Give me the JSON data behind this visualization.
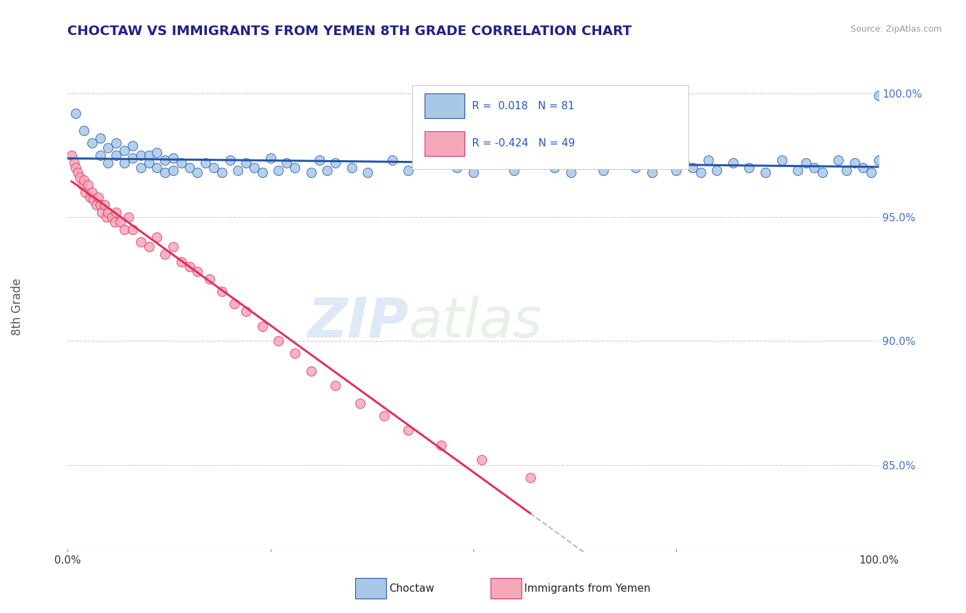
{
  "title": "CHOCTAW VS IMMIGRANTS FROM YEMEN 8TH GRADE CORRELATION CHART",
  "source": "Source: ZipAtlas.com",
  "ylabel": "8th Grade",
  "legend_label1": "Choctaw",
  "legend_label2": "Immigrants from Yemen",
  "R1": 0.018,
  "N1": 81,
  "R2": -0.424,
  "N2": 49,
  "xlim": [
    0.0,
    1.0
  ],
  "ylim": [
    0.815,
    1.008
  ],
  "yticks": [
    0.85,
    0.9,
    0.95,
    1.0
  ],
  "ytick_labels": [
    "85.0%",
    "90.0%",
    "95.0%",
    "100.0%"
  ],
  "color_blue": "#a8c8e8",
  "color_pink": "#f4a8b8",
  "line_color_blue": "#2255aa",
  "line_color_pink": "#e03060",
  "watermark_zip": "ZIP",
  "watermark_atlas": "atlas",
  "blue_scatter_x": [
    0.01,
    0.02,
    0.03,
    0.04,
    0.04,
    0.05,
    0.05,
    0.06,
    0.06,
    0.07,
    0.07,
    0.08,
    0.08,
    0.09,
    0.09,
    0.1,
    0.1,
    0.11,
    0.11,
    0.12,
    0.12,
    0.13,
    0.13,
    0.14,
    0.15,
    0.16,
    0.17,
    0.18,
    0.19,
    0.2,
    0.21,
    0.22,
    0.23,
    0.24,
    0.25,
    0.26,
    0.27,
    0.28,
    0.3,
    0.31,
    0.32,
    0.33,
    0.35,
    0.37,
    0.4,
    0.42,
    0.45,
    0.48,
    0.5,
    0.53,
    0.55,
    0.58,
    0.6,
    0.62,
    0.64,
    0.66,
    0.68,
    0.7,
    0.72,
    0.74,
    0.75,
    0.76,
    0.77,
    0.78,
    0.79,
    0.8,
    0.82,
    0.84,
    0.86,
    0.88,
    0.9,
    0.91,
    0.92,
    0.93,
    0.95,
    0.96,
    0.97,
    0.98,
    0.99,
    1.0,
    1.0
  ],
  "blue_scatter_y": [
    0.992,
    0.985,
    0.98,
    0.975,
    0.982,
    0.978,
    0.972,
    0.975,
    0.98,
    0.977,
    0.972,
    0.974,
    0.979,
    0.975,
    0.97,
    0.975,
    0.972,
    0.97,
    0.976,
    0.973,
    0.968,
    0.974,
    0.969,
    0.972,
    0.97,
    0.968,
    0.972,
    0.97,
    0.968,
    0.973,
    0.969,
    0.972,
    0.97,
    0.968,
    0.974,
    0.969,
    0.972,
    0.97,
    0.968,
    0.973,
    0.969,
    0.972,
    0.97,
    0.968,
    0.973,
    0.969,
    0.972,
    0.97,
    0.968,
    0.973,
    0.969,
    0.972,
    0.97,
    0.968,
    0.973,
    0.969,
    0.972,
    0.97,
    0.968,
    0.973,
    0.969,
    0.972,
    0.97,
    0.968,
    0.973,
    0.969,
    0.972,
    0.97,
    0.968,
    0.973,
    0.969,
    0.972,
    0.97,
    0.968,
    0.973,
    0.969,
    0.972,
    0.97,
    0.968,
    0.973,
    0.999
  ],
  "pink_scatter_x": [
    0.005,
    0.008,
    0.01,
    0.012,
    0.015,
    0.018,
    0.02,
    0.022,
    0.025,
    0.028,
    0.03,
    0.032,
    0.035,
    0.038,
    0.04,
    0.042,
    0.045,
    0.048,
    0.05,
    0.055,
    0.058,
    0.06,
    0.065,
    0.07,
    0.075,
    0.08,
    0.09,
    0.1,
    0.11,
    0.12,
    0.13,
    0.14,
    0.15,
    0.16,
    0.175,
    0.19,
    0.205,
    0.22,
    0.24,
    0.26,
    0.28,
    0.3,
    0.33,
    0.36,
    0.39,
    0.42,
    0.46,
    0.51,
    0.57
  ],
  "pink_scatter_y": [
    0.975,
    0.972,
    0.97,
    0.968,
    0.966,
    0.963,
    0.965,
    0.96,
    0.963,
    0.958,
    0.96,
    0.957,
    0.955,
    0.958,
    0.955,
    0.952,
    0.955,
    0.95,
    0.952,
    0.95,
    0.948,
    0.952,
    0.948,
    0.945,
    0.95,
    0.945,
    0.94,
    0.938,
    0.942,
    0.935,
    0.938,
    0.932,
    0.93,
    0.928,
    0.925,
    0.92,
    0.915,
    0.912,
    0.906,
    0.9,
    0.895,
    0.888,
    0.882,
    0.875,
    0.87,
    0.864,
    0.858,
    0.852,
    0.845
  ]
}
